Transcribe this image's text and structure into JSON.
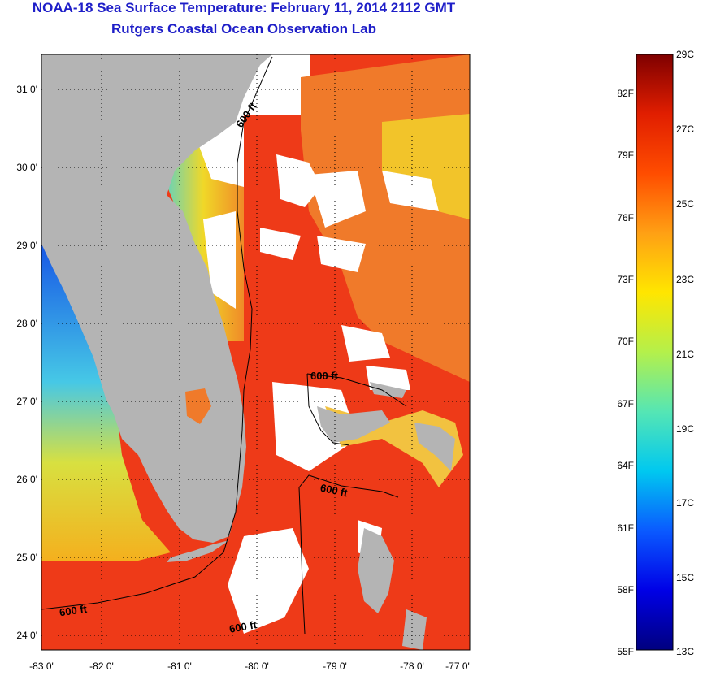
{
  "title": {
    "line1": "NOAA-18 Sea Surface Temperature:  February 11, 2014 2112 GMT",
    "line2": "Rutgers Coastal Ocean Observation Lab"
  },
  "map": {
    "y_ticks": [
      "31 0'",
      "30 0'",
      "29 0'",
      "28 0'",
      "27 0'",
      "26 0'",
      "25 0'",
      "24 0'"
    ],
    "x_ticks": [
      "-83 0'",
      "-82 0'",
      "-81 0'",
      "-80 0'",
      "-79 0'",
      "-78 0'",
      "-77 0'"
    ],
    "contour_labels": [
      "600 ft",
      "600 ft",
      "600 ft",
      "600 ft",
      "600 ft"
    ],
    "colors": {
      "land": "#b4b4b4",
      "cloud": "#ffffff",
      "warm": "#ee3a18",
      "hot": "#e82810",
      "orange": "#f07028",
      "yellow": "#f4d21e",
      "green": "#a8dc5a",
      "cyan": "#46c8e6",
      "blue": "#1450e6"
    }
  },
  "colorbar": {
    "celsius": [
      "29C",
      "27C",
      "25C",
      "23C",
      "21C",
      "19C",
      "17C",
      "15C",
      "13C"
    ],
    "fahrenheit": [
      "82F",
      "79F",
      "76F",
      "73F",
      "70F",
      "67F",
      "64F",
      "61F",
      "58F",
      "55F"
    ],
    "gradient": [
      "#00007f",
      "#0000e6",
      "#0a5aff",
      "#00c8f0",
      "#55e6b4",
      "#b4f04b",
      "#ffe600",
      "#ffa014",
      "#ff4d00",
      "#e11e00",
      "#7f0000"
    ]
  }
}
